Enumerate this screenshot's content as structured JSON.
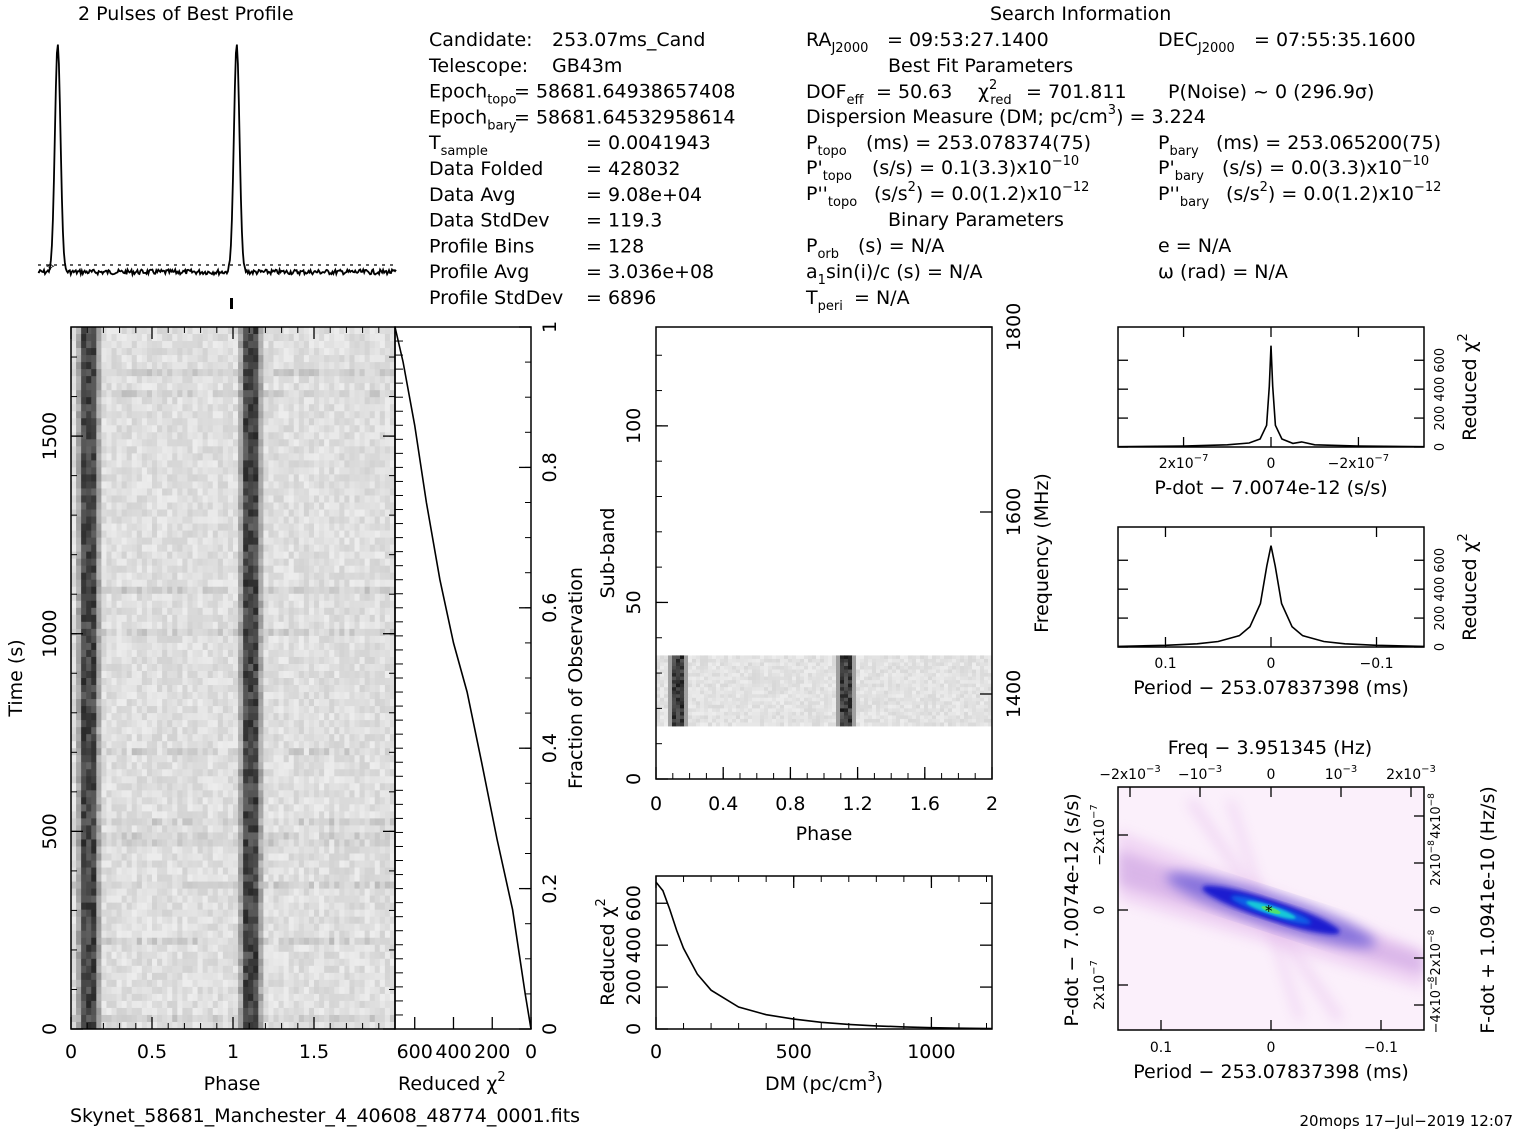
{
  "profile": {
    "title": "2 Pulses of Best Profile",
    "peaks": [
      0.11,
      1.11
    ]
  },
  "search_info": {
    "title": "Search Information",
    "col1": [
      {
        "label": "Candidate:",
        "value": "253.07ms_Cand"
      },
      {
        "label": "Telescope:",
        "value": "GB43m"
      },
      {
        "label": "Epoch",
        "sub": "topo",
        "value": "= 58681.64938657408"
      },
      {
        "label": "Epoch",
        "sub": "bary",
        "value": "= 58681.64532958614"
      },
      {
        "label": "T",
        "sub": "sample",
        "value": "=   0.0041943"
      },
      {
        "label": "Data Folded",
        "value": "=   428032"
      },
      {
        "label": "Data Avg",
        "value": "=   9.08e+04"
      },
      {
        "label": "Data StdDev",
        "value": "=   119.3"
      },
      {
        "label": "Profile Bins",
        "value": "=   128"
      },
      {
        "label": "Profile Avg",
        "value": "=   3.036e+08"
      },
      {
        "label": "Profile StdDev",
        "value": "=   6896"
      }
    ],
    "ra": "= 09:53:27.1400",
    "dec": "= 07:55:35.1600",
    "best_fit_title": "Best Fit Parameters",
    "dof": "DOF",
    "dof_sub": "eff",
    "dof_val": "= 50.63",
    "chi_val": "= 701.811",
    "pnoise": "P(Noise) ~ 0    (296.9σ)",
    "dm_line": "Dispersion Measure (DM; pc/cm",
    "dm_val": ") = 3.224",
    "ptopo": "(ms) =  253.078374(75)",
    "pbary": "(ms) =  253.065200(75)",
    "pdtopo": "(s/s) =  0.1(3.3)x10",
    "pdtopo_exp": "−10",
    "pdbary": "(s/s) = 0.0(3.3)x10",
    "pdbary_exp": "−10",
    "pddtopo": "(s/s",
    "pddtopo_val": ") = 0.0(1.2)x10",
    "pddtopo_exp": "−12",
    "pddbary": "(s/s",
    "pddbary_val": ") = 0.0(1.2)x10",
    "pddbary_exp": "−12",
    "binary_title": "Binary Parameters",
    "porb": "(s) = N/A",
    "a1": "sin(i)/c (s) = N/A",
    "tperi": "= N/A",
    "ecc": "e = N/A",
    "omega": "ω (rad) = N/A"
  },
  "chart_data": [
    {
      "type": "heatmap",
      "name": "time-phase",
      "xlabel": "Phase",
      "ylabel": "Time (s)",
      "xlim": [
        0,
        2
      ],
      "ylim": [
        0,
        1776
      ],
      "xticks": [
        "0",
        "0.5",
        "1",
        "1.5"
      ],
      "yticks": [
        "0",
        "500",
        "1000",
        "1500"
      ],
      "pulse_phases": [
        0.11,
        1.11
      ]
    },
    {
      "type": "line",
      "name": "reduced-chi2-vs-fraction",
      "xlabel": "Reduced χ",
      "ylabel": "Fraction of Observation",
      "xticks": [
        "600",
        "400",
        "200",
        "0"
      ],
      "yticks": [
        "0",
        "0.2",
        "0.4",
        "0.6",
        "0.8",
        "1"
      ],
      "xlim": [
        701.8,
        0
      ],
      "x": [
        0,
        30,
        95,
        175,
        255,
        330,
        400,
        470,
        540,
        600,
        660,
        701.8
      ],
      "y": [
        0,
        0.05,
        0.17,
        0.27,
        0.38,
        0.48,
        0.55,
        0.64,
        0.75,
        0.86,
        0.95,
        1.0
      ]
    },
    {
      "type": "heatmap",
      "name": "subband-phase",
      "xlabel": "Phase",
      "ylabel": "Sub-band",
      "y2label": "Frequency (MHz)",
      "xticks": [
        "0",
        "0.4",
        "0.8",
        "1.2",
        "1.6",
        "2"
      ],
      "yticks": [
        "0",
        "50",
        "100"
      ],
      "y2ticks": [
        "1400",
        "1600",
        "1800"
      ],
      "ylim": [
        0,
        128
      ],
      "occupied_subbands": [
        15,
        35
      ],
      "pulse_phases": [
        0.12,
        1.12
      ]
    },
    {
      "type": "line",
      "name": "dm-curve",
      "xlabel": "DM (pc/cm",
      "ylabel": "Reduced χ",
      "xticks": [
        "0",
        "500",
        "1000"
      ],
      "yticks": [
        "0",
        "200",
        "400",
        "600"
      ],
      "xlim": [
        0,
        1220
      ],
      "ylim": [
        0,
        730
      ],
      "x": [
        0,
        25,
        50,
        75,
        100,
        150,
        200,
        300,
        400,
        500,
        600,
        700,
        800,
        900,
        1000,
        1100,
        1220
      ],
      "y": [
        701,
        660,
        570,
        470,
        385,
        262,
        185,
        105,
        68,
        47,
        32,
        22,
        15,
        10,
        6,
        4,
        2
      ]
    },
    {
      "type": "line",
      "name": "pdot-chi2",
      "xlabel": "P-dot − 7.0074e-12 (s/s)",
      "ylabel": "Reduced χ",
      "xticks": [
        "2x10",
        "0",
        "−2x10"
      ],
      "xtick_exp": "−7",
      "yticks": [
        "0",
        "200",
        "400",
        "600"
      ],
      "xlim": [
        3.5e-07,
        -3.5e-07
      ],
      "ylim": [
        0,
        830
      ],
      "x": [
        3.5e-07,
        2e-07,
        1e-07,
        5e-08,
        2.5e-08,
        1e-08,
        4e-09,
        0,
        -4e-09,
        -1e-08,
        -2.5e-08,
        -5e-08,
        -7e-08,
        -1e-07,
        -2e-07,
        -3.5e-07
      ],
      "y": [
        2,
        6,
        15,
        28,
        55,
        150,
        420,
        701,
        420,
        150,
        55,
        25,
        35,
        15,
        6,
        2
      ]
    },
    {
      "type": "line",
      "name": "period-chi2",
      "xlabel": "Period − 253.07837398 (ms)",
      "ylabel": "Reduced χ",
      "xticks": [
        "0.1",
        "0",
        "−0.1"
      ],
      "yticks": [
        "0",
        "200",
        "400",
        "600"
      ],
      "xlim": [
        0.145,
        -0.145
      ],
      "ylim": [
        0,
        830
      ],
      "x": [
        0.145,
        0.1,
        0.07,
        0.05,
        0.03,
        0.02,
        0.01,
        0.004,
        0,
        -0.004,
        -0.01,
        -0.02,
        -0.03,
        -0.05,
        -0.07,
        -0.1,
        -0.145
      ],
      "y": [
        4,
        12,
        22,
        38,
        78,
        140,
        300,
        560,
        701,
        560,
        300,
        140,
        78,
        38,
        22,
        12,
        4
      ]
    },
    {
      "type": "heatmap",
      "name": "period-pdot-plane",
      "title": "Freq − 3.951345 (Hz)",
      "xlabel": "Period − 253.07837398 (ms)",
      "ylabel": "P-dot − 7.0074e-12 (s/s)",
      "y2label": "F-dot + 1.0941e-10 (Hz/s)",
      "xticks": [
        "0.1",
        "0",
        "−0.1"
      ],
      "topticks": [
        "−2x10",
        "−10",
        "0",
        "10",
        "2x10"
      ],
      "topticks_exp": [
        "−3",
        "−3",
        "",
        "−3",
        "−3"
      ],
      "yticks": [
        "2x10",
        "0",
        "−2x10"
      ],
      "ytick_exp": "−7",
      "y2ticks": [
        "−4x10",
        "−2x10",
        "0",
        "2x10",
        "4x10"
      ],
      "y2tick_exp": "−8"
    }
  ],
  "footer": {
    "filename": "Skynet_58681_Manchester_4_40608_48774_0001.fits",
    "stamp": "20mops 17−Jul−2019 12:07"
  }
}
